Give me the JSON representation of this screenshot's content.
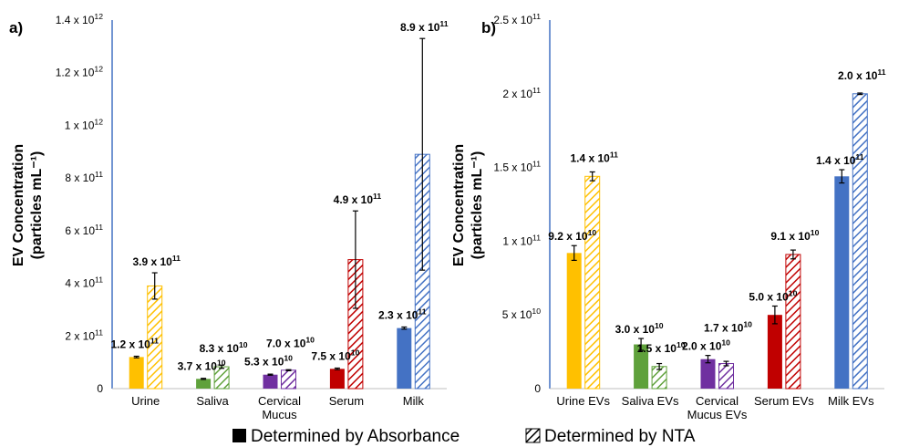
{
  "legend": {
    "absorbance_label": "Determined by Absorbance",
    "nta_label": "Determined by NTA"
  },
  "chart_data": [
    {
      "panel": "a)",
      "type": "bar",
      "ylabel_line1": "EV Concentration",
      "ylabel_line2": "(particles mL⁻¹)",
      "ylim": [
        0,
        1400000000000.0
      ],
      "yticks": [
        0,
        200000000000.0,
        400000000000.0,
        600000000000.0,
        800000000000.0,
        1000000000000.0,
        1200000000000.0,
        1400000000000.0
      ],
      "ytick_labels": [
        {
          "base": "0",
          "exp": ""
        },
        {
          "base": "2 x 10",
          "exp": "11"
        },
        {
          "base": "4 x 10",
          "exp": "11"
        },
        {
          "base": "6 x 10",
          "exp": "11"
        },
        {
          "base": "8 x 10",
          "exp": "11"
        },
        {
          "base": "1 x 10",
          "exp": "12"
        },
        {
          "base": "1.2 x 10",
          "exp": "12"
        },
        {
          "base": "1.4 x 10",
          "exp": "12"
        }
      ],
      "categories": [
        {
          "lines": [
            "Urine"
          ],
          "color": "#FFC000"
        },
        {
          "lines": [
            "Saliva"
          ],
          "color": "#5FA13B"
        },
        {
          "lines": [
            "Cervical",
            "Mucus"
          ],
          "color": "#7030A0"
        },
        {
          "lines": [
            "Serum"
          ],
          "color": "#C00000"
        },
        {
          "lines": [
            "Milk"
          ],
          "color": "#4472C4"
        }
      ],
      "series": [
        {
          "name": "Determined by Absorbance",
          "values": [
            120000000000.0,
            37000000000.0,
            53000000000.0,
            75000000000.0,
            230000000000.0
          ],
          "errors": [
            3000000000.0,
            2000000000.0,
            2000000000.0,
            3000000000.0,
            4000000000.0
          ],
          "labels": [
            {
              "base": "1.2 x 10",
              "exp": "11"
            },
            {
              "base": "3.7 x 10",
              "exp": "10"
            },
            {
              "base": "5.3 x 10",
              "exp": "10"
            },
            {
              "base": "7.5 x 10",
              "exp": "10"
            },
            {
              "base": "2.3 x 10",
              "exp": "11"
            }
          ]
        },
        {
          "name": "Determined by NTA",
          "values": [
            390000000000.0,
            83000000000.0,
            70000000000.0,
            490000000000.0,
            890000000000.0
          ],
          "errors": [
            50000000000.0,
            6000000000.0,
            2000000000.0,
            185000000000.0,
            440000000000.0
          ],
          "labels": [
            {
              "base": "3.9 x 10",
              "exp": "11"
            },
            {
              "base": "8.3 x 10",
              "exp": "10"
            },
            {
              "base": "7.0 x 10",
              "exp": "10"
            },
            {
              "base": "4.9 x 10",
              "exp": "11"
            },
            {
              "base": "8.9 x 10",
              "exp": "11"
            }
          ]
        }
      ]
    },
    {
      "panel": "b)",
      "type": "bar",
      "ylabel_line1": "EV Concentration",
      "ylabel_line2": "(particles mL⁻¹)",
      "ylim": [
        0,
        250000000000.0
      ],
      "yticks": [
        0,
        50000000000.0,
        100000000000.0,
        150000000000.0,
        200000000000.0,
        250000000000.0
      ],
      "ytick_labels": [
        {
          "base": "0",
          "exp": ""
        },
        {
          "base": "5 x 10",
          "exp": "10"
        },
        {
          "base": "1 x 10",
          "exp": "11"
        },
        {
          "base": "1.5 x 10",
          "exp": "11"
        },
        {
          "base": "2 x 10",
          "exp": "11"
        },
        {
          "base": "2.5 x 10",
          "exp": "11"
        }
      ],
      "categories": [
        {
          "lines": [
            "Urine EVs"
          ],
          "color": "#FFC000"
        },
        {
          "lines": [
            "Saliva EVs"
          ],
          "color": "#5FA13B"
        },
        {
          "lines": [
            "Cervical",
            "Mucus EVs"
          ],
          "color": "#7030A0"
        },
        {
          "lines": [
            "Serum EVs"
          ],
          "color": "#C00000"
        },
        {
          "lines": [
            "Milk EVs"
          ],
          "color": "#4472C4"
        }
      ],
      "series": [
        {
          "name": "Determined by Absorbance",
          "values": [
            92000000000.0,
            30000000000.0,
            20000000000.0,
            50000000000.0,
            144000000000.0
          ],
          "errors": [
            5000000000.0,
            4000000000.0,
            2500000000.0,
            6000000000.0,
            4500000000.0
          ],
          "labels": [
            {
              "base": "9.2 x 10",
              "exp": "10"
            },
            {
              "base": "3.0 x 10",
              "exp": "10"
            },
            {
              "base": "2.0 x 10",
              "exp": "10"
            },
            {
              "base": "5.0 x 10",
              "exp": "10"
            },
            {
              "base": "1.4 x 10",
              "exp": "11"
            }
          ]
        },
        {
          "name": "Determined by NTA",
          "values": [
            144000000000.0,
            15000000000.0,
            17000000000.0,
            91000000000.0,
            200000000000.0
          ],
          "errors": [
            3000000000.0,
            2000000000.0,
            1500000000.0,
            3000000000.0,
            500000000.0
          ],
          "labels": [
            {
              "base": "1.4 x 10",
              "exp": "11"
            },
            {
              "base": "1.5 x 10",
              "exp": "10"
            },
            {
              "base": "1.7 x 10",
              "exp": "10"
            },
            {
              "base": "9.1 x 10",
              "exp": "10"
            },
            {
              "base": "2.0 x 10",
              "exp": "11"
            }
          ]
        }
      ]
    }
  ]
}
